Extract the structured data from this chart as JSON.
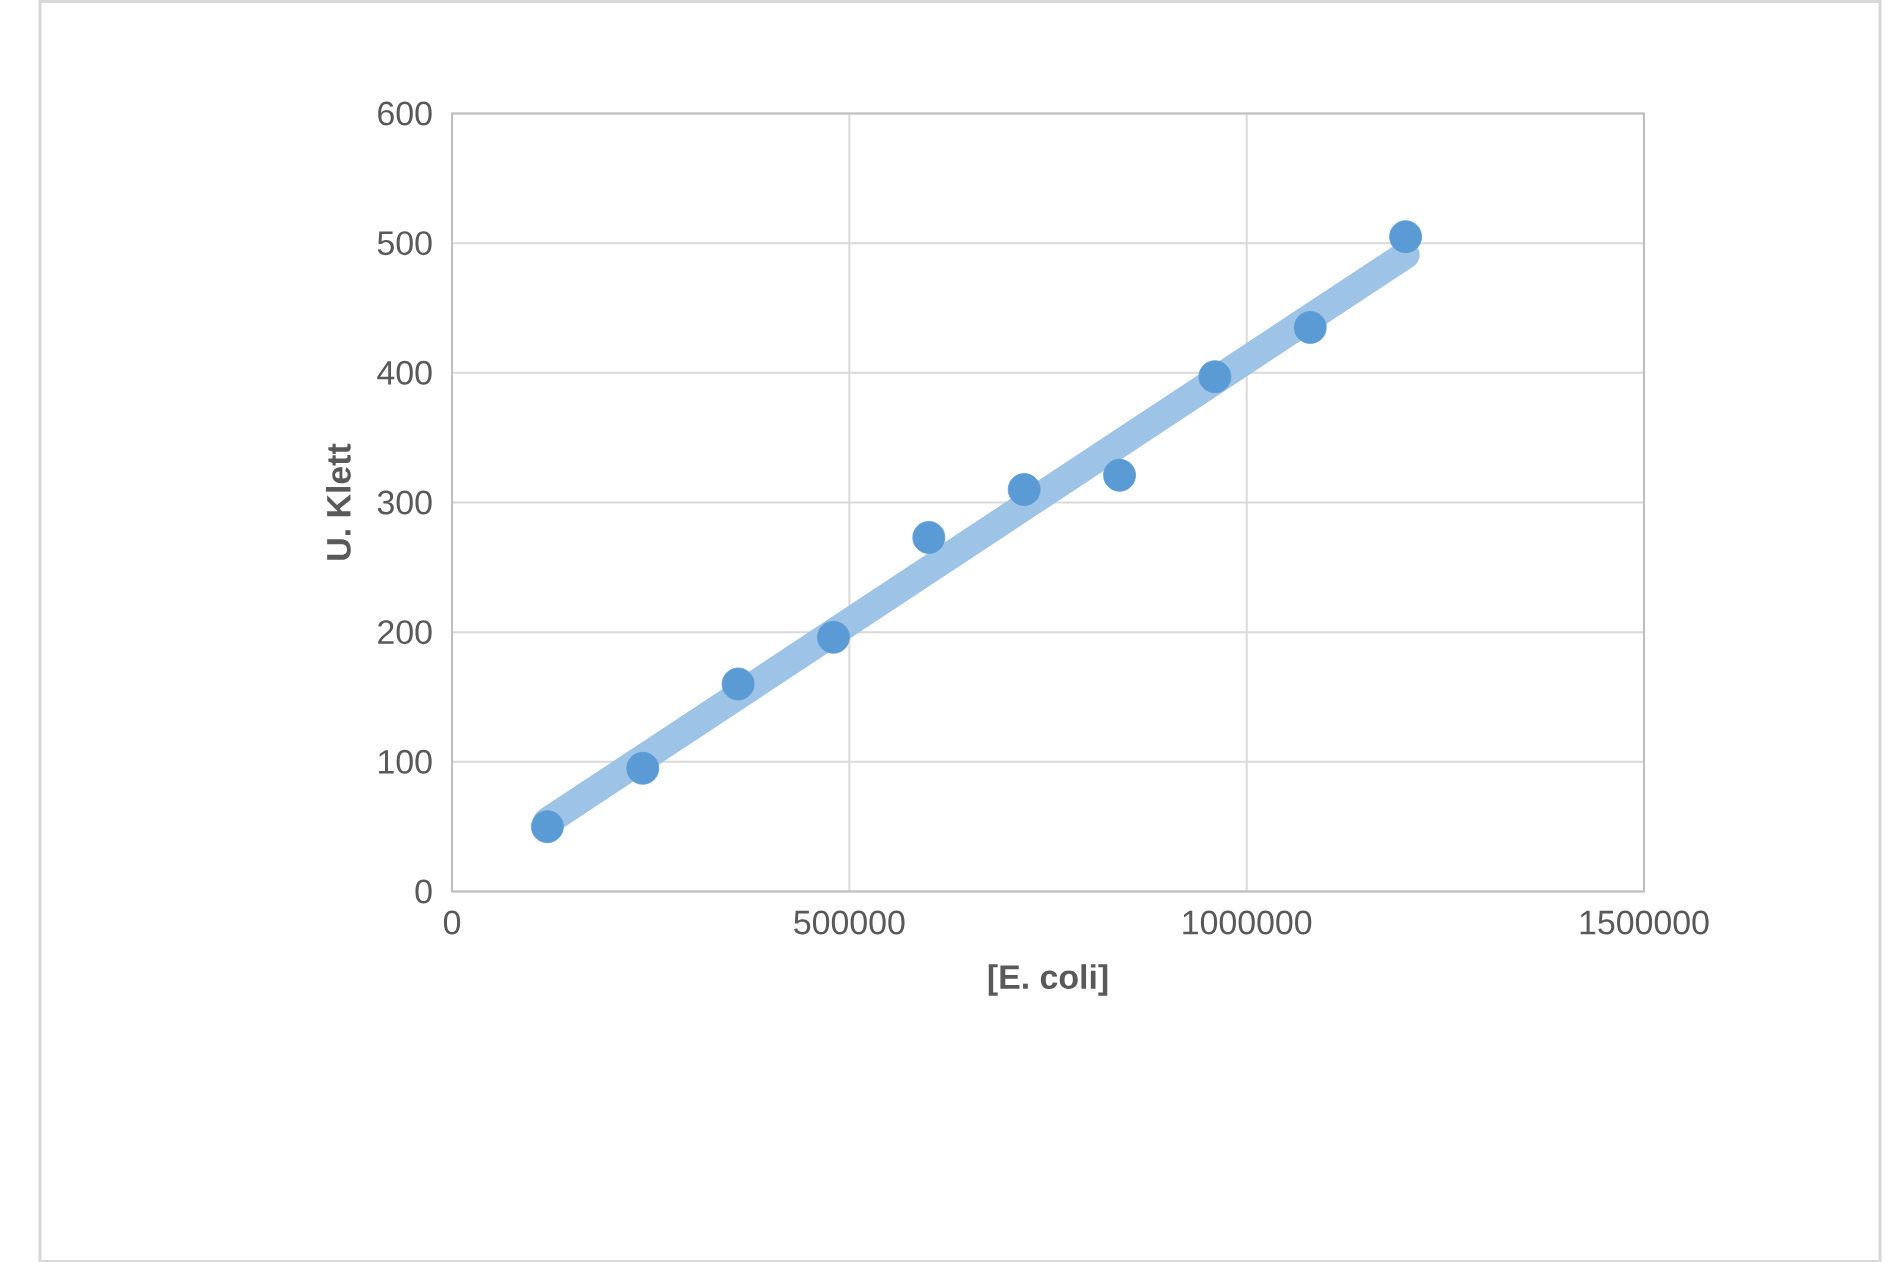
{
  "chart_data": {
    "type": "scatter",
    "xlabel": "[E. coli]",
    "ylabel": "U. Klett",
    "series": [
      {
        "color": "#5b9bd5",
        "marker": "circle",
        "x": [
          120000,
          240000,
          360000,
          480000,
          600000,
          720000,
          840000,
          960000,
          1080000,
          1200000
        ],
        "values": [
          50,
          95,
          160,
          196,
          273,
          310,
          321,
          397,
          435,
          505
        ]
      },
      {
        "type": "line",
        "marker": "none",
        "color": "#9dc3e6",
        "x": [
          120000,
          1200000
        ],
        "values": [
          54,
          491
        ]
      }
    ],
    "xlim": [
      0,
      1500000
    ],
    "xticks": [
      0,
      500000,
      1000000,
      1500000
    ],
    "ylim": [
      0,
      600
    ],
    "yticks": [
      0,
      100,
      200,
      300,
      400,
      500,
      600
    ],
    "grid": true
  }
}
